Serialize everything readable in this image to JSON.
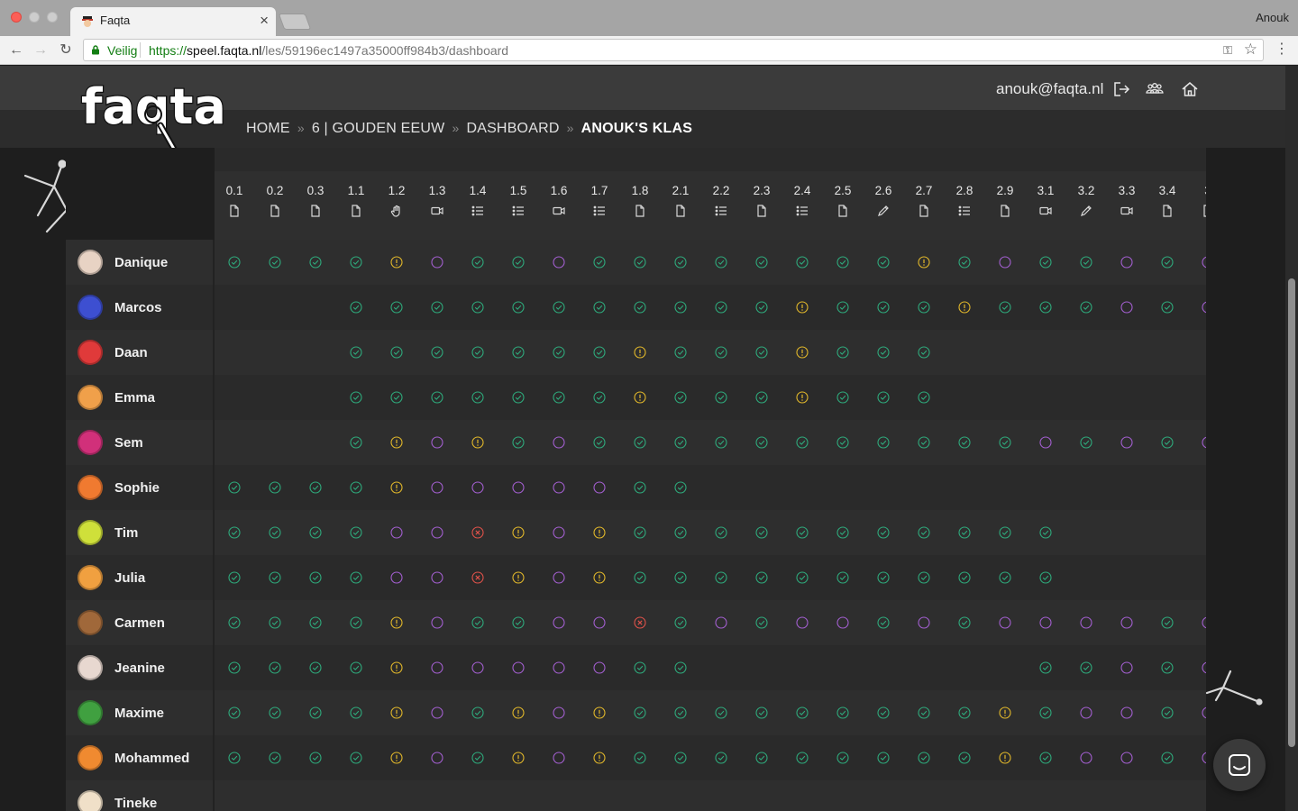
{
  "browser": {
    "tab_title": "Faqta",
    "tab_close": "×",
    "profile_name": "Anouk",
    "secure_label": "Veilig",
    "url_scheme": "https://",
    "url_host": "speel.faqta.nl",
    "url_path": "/les/59196ec1497a35000ff984b3/dashboard",
    "nav_back": "←",
    "nav_forward": "→",
    "nav_reload": "↻",
    "key_icon": "⚿",
    "star_icon": "☆",
    "menu_icon": "⋮"
  },
  "header": {
    "logo": "faqta",
    "user_email": "anouk@faqta.nl",
    "icons": [
      "logout-icon",
      "group-icon",
      "home-icon"
    ]
  },
  "breadcrumb": {
    "items": [
      "HOME",
      "6 | GOUDEN EEUW",
      "DASHBOARD",
      "ANOUK'S KLAS"
    ],
    "separator": "»"
  },
  "columns": [
    {
      "label": "0.1",
      "type": "document"
    },
    {
      "label": "0.2",
      "type": "document"
    },
    {
      "label": "0.3",
      "type": "document"
    },
    {
      "label": "1.1",
      "type": "document"
    },
    {
      "label": "1.2",
      "type": "hand"
    },
    {
      "label": "1.3",
      "type": "video"
    },
    {
      "label": "1.4",
      "type": "list"
    },
    {
      "label": "1.5",
      "type": "list"
    },
    {
      "label": "1.6",
      "type": "video"
    },
    {
      "label": "1.7",
      "type": "list"
    },
    {
      "label": "1.8",
      "type": "document"
    },
    {
      "label": "2.1",
      "type": "document"
    },
    {
      "label": "2.2",
      "type": "list"
    },
    {
      "label": "2.3",
      "type": "document"
    },
    {
      "label": "2.4",
      "type": "list"
    },
    {
      "label": "2.5",
      "type": "document"
    },
    {
      "label": "2.6",
      "type": "pencil"
    },
    {
      "label": "2.7",
      "type": "document"
    },
    {
      "label": "2.8",
      "type": "list"
    },
    {
      "label": "2.9",
      "type": "document"
    },
    {
      "label": "3.1",
      "type": "video"
    },
    {
      "label": "3.2",
      "type": "pencil"
    },
    {
      "label": "3.3",
      "type": "video"
    },
    {
      "label": "3.4",
      "type": "document"
    },
    {
      "label": "3",
      "type": "document"
    }
  ],
  "status_legend": {
    "c": "completed",
    "w": "warning",
    "o": "open",
    "x": "failed",
    "_": "none"
  },
  "colors": {
    "completed": "#2eaa7c",
    "warning": "#e2b82a",
    "open": "#a35fd0",
    "failed": "#e0524a"
  },
  "students": [
    {
      "name": "Danique",
      "avatar": "#e8d3c4",
      "statuses": "ccccwoccoccccccccwcoccoco"
    },
    {
      "name": "Marcos",
      "avatar": "#3d4fd1",
      "statuses": "___cccccccccccwcccwcccoco"
    },
    {
      "name": "Daan",
      "avatar": "#e03a3a",
      "statuses": "___cccccccwcccwccc_______"
    },
    {
      "name": "Emma",
      "avatar": "#f0a04a",
      "statuses": "___cccccccwcccwccc_______"
    },
    {
      "name": "Sem",
      "avatar": "#d1307a",
      "statuses": "___cwowcocccccccccccocoço"
    },
    {
      "name": "Sophie",
      "avatar": "#f07a30",
      "statuses": "ccccwooooocc_____________"
    },
    {
      "name": "Tim",
      "avatar": "#cfe03a",
      "statuses": "ccccooxwowccccccccccc____"
    },
    {
      "name": "Julia",
      "avatar": "#f0a040",
      "statuses": "ccccooxwowccccccccccc____"
    },
    {
      "name": "Carmen",
      "avatar": "#a0683a",
      "statuses": "ccccwocco xcoco cocooooco"
    },
    {
      "name": "Jeanine",
      "avatar": "#e8d8d0",
      "statuses": "ccccwooooocc________ccoco"
    },
    {
      "name": "Maxime",
      "avatar": "#40a040",
      "statuses": "ccccwocwowcccccccccwcooco"
    },
    {
      "name": "Mohammed",
      "avatar": "#f08a30",
      "statuses": "ccccwocwowcccccccccwcooco"
    },
    {
      "name": "Tineke",
      "avatar": "#f0e0c8",
      "statuses": "_________________________"
    }
  ],
  "chat": {
    "icon": "chat-icon"
  }
}
